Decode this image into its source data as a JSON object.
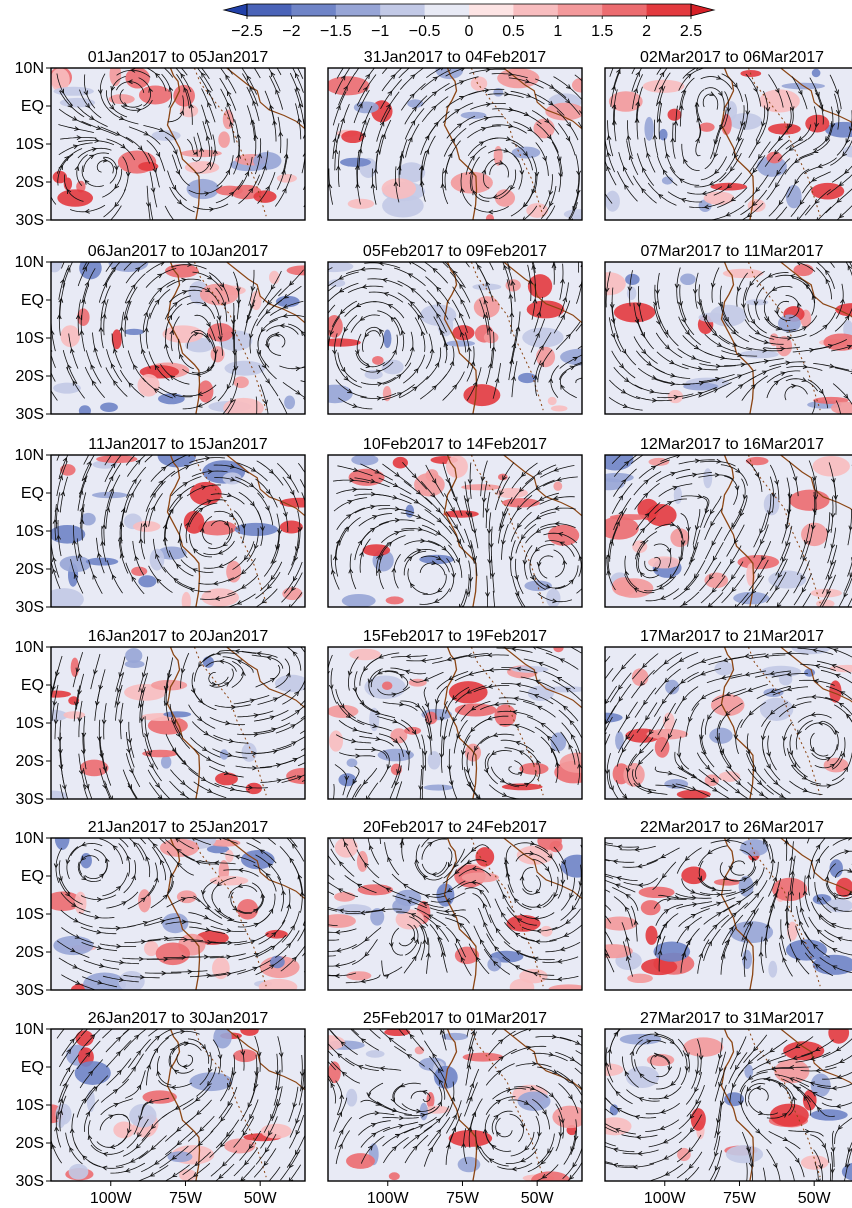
{
  "chart_data": {
    "type": "heatmap",
    "colorbar": {
      "ticks": [
        "−2.5",
        "−2",
        "−1.5",
        "−1",
        "−0.5",
        "0",
        "0.5",
        "1",
        "1.5",
        "2",
        "2.5"
      ],
      "tick_values": [
        -2.5,
        -2,
        -1.5,
        -1,
        -0.5,
        0,
        0.5,
        1,
        1.5,
        2,
        2.5
      ],
      "range": [
        -2.5,
        2.5
      ],
      "extend": "both",
      "colors": [
        "#2140a8",
        "#4a63b8",
        "#6f84c7",
        "#97a5d6",
        "#c2c9e6",
        "#e8eaf5",
        "#fde4e4",
        "#f8bdbf",
        "#f3999b",
        "#ec6c70",
        "#e33a3f",
        "#d62027"
      ]
    },
    "axes": {
      "ytick_labels": [
        "10N",
        "EQ",
        "10S",
        "20S",
        "30S"
      ],
      "ytick_values": [
        10,
        0,
        -10,
        -20,
        -30
      ],
      "xtick_labels": [
        "100W",
        "75W",
        "50W"
      ],
      "xtick_values": [
        -100,
        -75,
        -50
      ],
      "xlim": [
        -120,
        -35
      ],
      "ylim": [
        -30,
        10
      ]
    },
    "overlay": "streamlines",
    "coastline_color": "#8b4513",
    "panel_titles": [
      [
        "01Jan2017 to 05Jan2017",
        "31Jan2017 to 04Feb2017",
        "02Mar2017 to 06Mar2017"
      ],
      [
        "06Jan2017 to 10Jan2017",
        "05Feb2017 to 09Feb2017",
        "07Mar2017 to 11Mar2017"
      ],
      [
        "11Jan2017 to 15Jan2017",
        "10Feb2017 to 14Feb2017",
        "12Mar2017 to 16Mar2017"
      ],
      [
        "16Jan2017 to 20Jan2017",
        "15Feb2017 to 19Feb2017",
        "17Mar2017 to 21Mar2017"
      ],
      [
        "21Jan2017 to 25Jan2017",
        "20Feb2017 to 24Feb2017",
        "22Mar2017 to 26Mar2017"
      ],
      [
        "26Jan2017 to 30Jan2017",
        "25Feb2017 to 01Mar2017",
        "27Mar2017 to 31Mar2017"
      ]
    ]
  }
}
